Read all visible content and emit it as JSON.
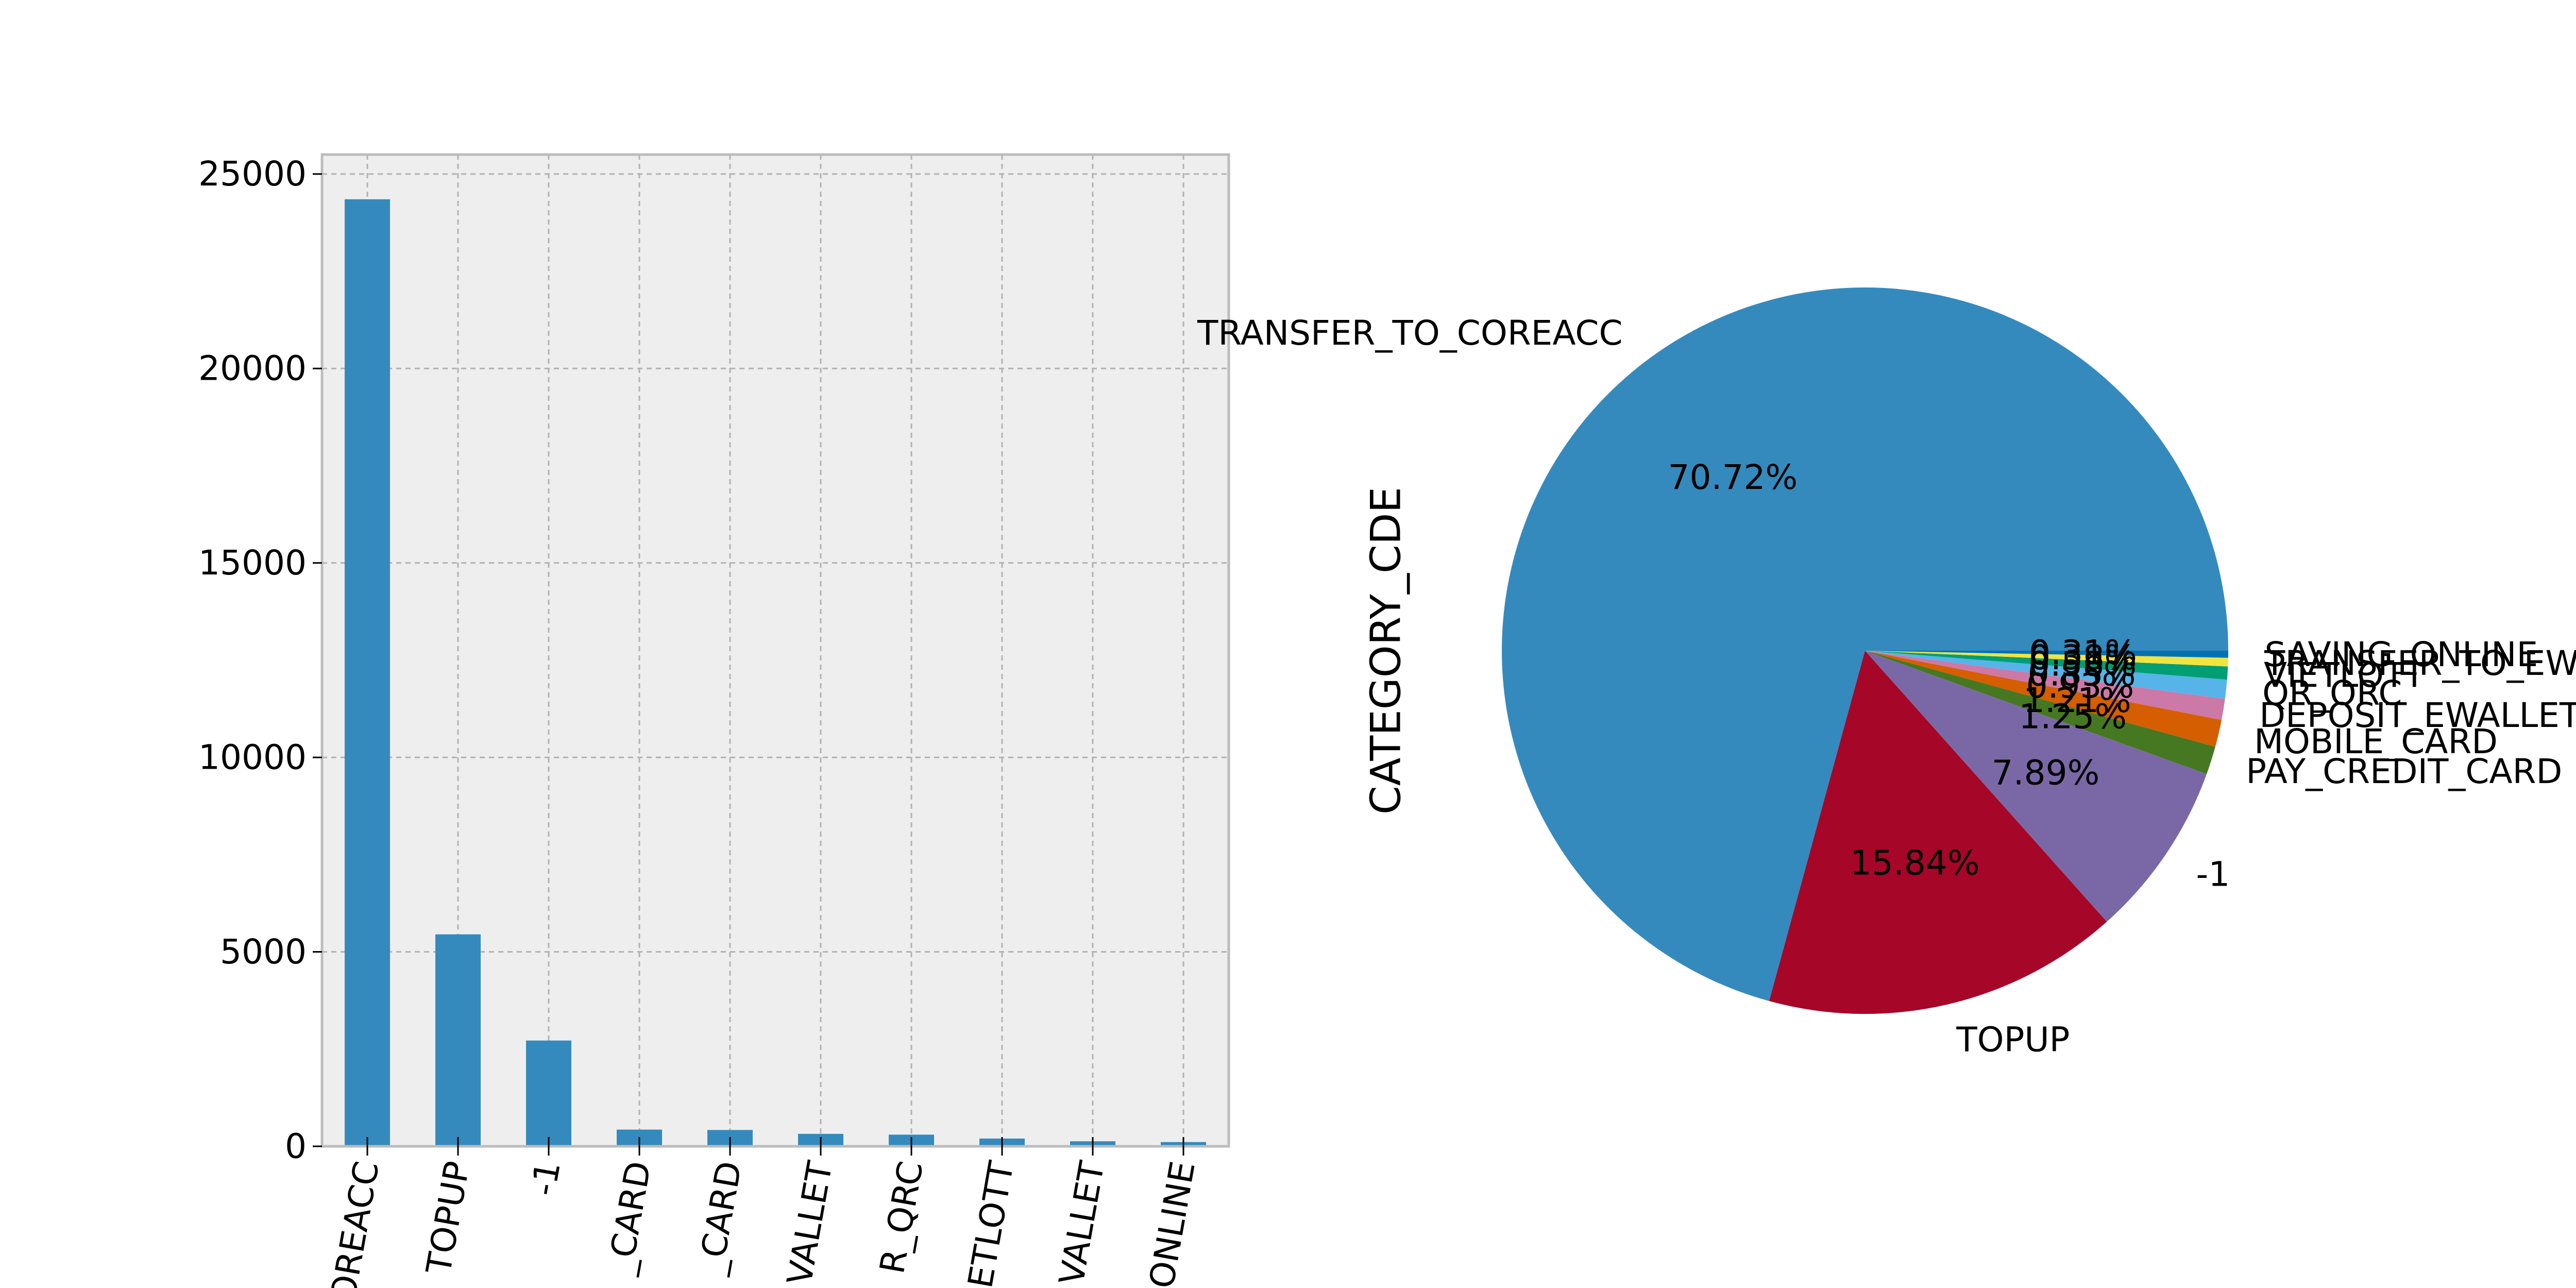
{
  "chart_data": [
    {
      "type": "bar",
      "categories": [
        "TRANSFER_TO_COREACC",
        "TOPUP",
        "-1",
        "PAY_CREDIT_CARD",
        "MOBILE_CARD",
        "DEPOSIT_EWALLET",
        "QR_QRC",
        "VIETLOTT",
        "TRANSFER_TO_EWALLET",
        "SAVING_ONLINE"
      ],
      "category_labels_visible": [
        "OREACC",
        "TOPUP",
        "-1",
        "_CARD",
        "_CARD",
        "VALLET",
        "R_QRC",
        "ETLOTT",
        "VALLET",
        "ONLINE"
      ],
      "values": [
        24350,
        5450,
        2720,
        430,
        420,
        320,
        300,
        200,
        130,
        110
      ],
      "ylim": [
        0,
        25500
      ],
      "yticks": [
        "0",
        "5000",
        "10000",
        "15000",
        "20000",
        "25000"
      ],
      "ytick_values": [
        0,
        5000,
        10000,
        15000,
        20000,
        25000
      ],
      "grid": true,
      "colors": {
        "bar": "#348ABD",
        "background": "#EEEEEE",
        "grid": "#B2B2B2",
        "frame": "#BCBCBC"
      }
    },
    {
      "type": "pie",
      "ylabel": "CATEGORY_CDE",
      "labels": [
        "TRANSFER_TO_COREACC",
        "TOPUP",
        "-1",
        "PAY_CREDIT_CARD",
        "MOBILE_CARD",
        "DEPOSIT_EWALLET",
        "QR_QRC",
        "VIETLOTT",
        "TRANSFER_TO_EWALLET",
        "SAVING_ONLINE"
      ],
      "values": [
        70.72,
        15.84,
        7.89,
        1.25,
        1.21,
        0.93,
        0.85,
        0.58,
        0.38,
        0.31
      ],
      "pct_labels": [
        "70.72%",
        "15.84%",
        "7.89%",
        "1.25%",
        "1.21%",
        "0.93%",
        "0.85%",
        "0.58%",
        "0.38%",
        "0.31%"
      ],
      "startangle": 0,
      "colors": [
        "#348ABD",
        "#A60628",
        "#7A68A6",
        "#467821",
        "#D55E00",
        "#CC79A7",
        "#56B4E9",
        "#009E73",
        "#F0E442",
        "#0072B2"
      ]
    }
  ]
}
